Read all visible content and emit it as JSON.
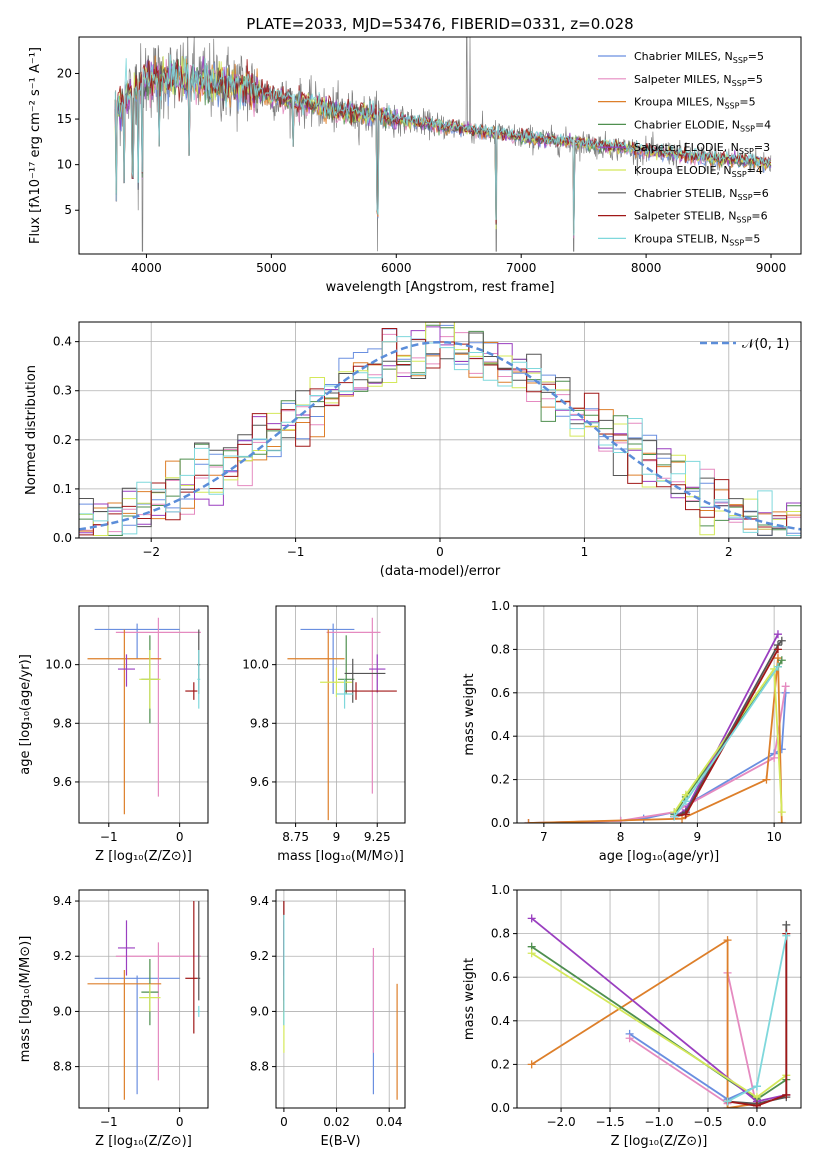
{
  "figure": {
    "title": "PLATE=2033, MJD=53476, FIBERID=0331, z=0.028"
  },
  "colors": {
    "Chabrier MILES": "#6a8fe0",
    "Salpeter MILES": "#e58ac0",
    "Kroupa MILES": "#dd7f2a",
    "Chabrier ELODIE": "#4f8f4f",
    "Salpeter ELODIE": "#9a3fc0",
    "Kroupa ELODIE": "#d4e85a",
    "Chabrier STELIB": "#555555",
    "Salpeter STELIB": "#a01818",
    "Kroupa STELIB": "#7fd8dc",
    "data": "#808080",
    "gauss": "#5b8dd9"
  },
  "chart_data": [
    {
      "id": "spectrum",
      "type": "line",
      "title": "PLATE=2033, MJD=53476, FIBERID=0331, z=0.028",
      "xlabel": "wavelength [Angstrom, rest frame]",
      "ylabel": "Flux [fλ10⁻¹⁷ erg cm⁻² s⁻¹ A⁻¹]",
      "xlim": [
        3460,
        9240
      ],
      "ylim": [
        0.2,
        24
      ],
      "xticks": [
        4000,
        5000,
        6000,
        7000,
        8000,
        9000
      ],
      "yticks": [
        5,
        10,
        15,
        20
      ],
      "legend": "top-right",
      "legend_entries": [
        {
          "name": "Chabrier MILES",
          "sub": "SSP",
          "n": "5"
        },
        {
          "name": "Salpeter MILES",
          "sub": "SSP",
          "n": "5"
        },
        {
          "name": "Kroupa MILES",
          "sub": "SSP",
          "n": "5"
        },
        {
          "name": "Chabrier ELODIE",
          "sub": "SSP",
          "n": "4"
        },
        {
          "name": "Salpeter ELODIE",
          "sub": "SSP",
          "n": "3"
        },
        {
          "name": "Kroupa ELODIE",
          "sub": "SSP",
          "n": "4"
        },
        {
          "name": "Chabrier STELIB",
          "sub": "SSP",
          "n": "6"
        },
        {
          "name": "Salpeter STELIB",
          "sub": "SSP",
          "n": "6"
        },
        {
          "name": "Kroupa STELIB",
          "sub": "SSP",
          "n": "5"
        }
      ],
      "continuum": {
        "x": [
          3750,
          4000,
          4300,
          4800,
          5000,
          5500,
          6000,
          6500,
          7000,
          7500,
          8000,
          8500,
          9000
        ],
        "y": [
          16,
          19.5,
          19.5,
          18.5,
          17.5,
          16,
          15,
          14,
          13,
          12.3,
          11.5,
          10.7,
          10.2
        ]
      },
      "absorption_lines": [
        {
          "x": 3760,
          "y": 6
        },
        {
          "x": 3820,
          "y": 8
        },
        {
          "x": 3890,
          "y": 8.5
        },
        {
          "x": 3934,
          "y": 5
        },
        {
          "x": 3968,
          "y": 0.5
        },
        {
          "x": 4102,
          "y": 12
        },
        {
          "x": 4340,
          "y": 11
        },
        {
          "x": 5175,
          "y": 12
        },
        {
          "x": 5850,
          "y": 0.5
        },
        {
          "x": 6800,
          "y": 0.5
        },
        {
          "x": 7420,
          "y": 0.5
        }
      ],
      "emission_lines": [
        {
          "x": 6563,
          "y": 24
        },
        {
          "x": 6590,
          "y": 24
        }
      ]
    },
    {
      "id": "residuals",
      "type": "line",
      "xlabel": "(data-model)/error",
      "ylabel": "Normed distribution",
      "xlim": [
        -2.5,
        2.5
      ],
      "ylim": [
        0,
        0.44
      ],
      "xticks": [
        -2,
        -1,
        0,
        1,
        2
      ],
      "yticks": [
        0.0,
        0.1,
        0.2,
        0.3,
        0.4
      ],
      "legend": "top-right",
      "legend_label": "𝒩(0, 1)",
      "curve": "normal(0,1) pdf"
    },
    {
      "id": "age_vs_Z",
      "type": "scatter",
      "xlabel": "Z [log₁₀(Z/Z⊙)]",
      "ylabel": "age  [log₁₀(age/yr)]",
      "xlim": [
        -1.42,
        0.4
      ],
      "ylim": [
        9.46,
        10.2
      ],
      "xticks": [
        -1,
        0
      ],
      "yticks": [
        9.6,
        9.8,
        10.0
      ],
      "points": [
        {
          "series": "Chabrier MILES",
          "x": -0.6,
          "xerr": [
            0.6,
            0.6
          ],
          "y": 10.12,
          "yerr": [
            0.1,
            0.02
          ]
        },
        {
          "series": "Salpeter MILES",
          "x": -0.3,
          "xerr": [
            0.6,
            0.6
          ],
          "y": 10.11,
          "yerr": [
            0.56,
            0.05
          ]
        },
        {
          "series": "Kroupa MILES",
          "x": -0.78,
          "xerr": [
            0.52,
            0.52
          ],
          "y": 10.02,
          "yerr": [
            0.53,
            0.1
          ]
        },
        {
          "series": "Chabrier ELODIE",
          "x": -0.42,
          "xerr": [
            0.12,
            0.12
          ],
          "y": 9.95,
          "yerr": [
            0.15,
            0.15
          ]
        },
        {
          "series": "Salpeter ELODIE",
          "x": -0.75,
          "xerr": [
            0.12,
            0.12
          ],
          "y": 9.985,
          "yerr": [
            0.06,
            0.05
          ]
        },
        {
          "series": "Kroupa ELODIE",
          "x": -0.42,
          "xerr": [
            0.15,
            0.15
          ],
          "y": 9.95,
          "yerr": [
            0.1,
            0.1
          ]
        },
        {
          "series": "Chabrier STELIB",
          "x": 0.27,
          "xerr": [
            0.02,
            0.02
          ],
          "y": 10.0,
          "yerr": [
            0.1,
            0.12
          ]
        },
        {
          "series": "Salpeter STELIB",
          "x": 0.2,
          "xerr": [
            0.12,
            0.05
          ],
          "y": 9.91,
          "yerr": [
            0.03,
            0.03
          ]
        },
        {
          "series": "Kroupa STELIB",
          "x": 0.27,
          "xerr": [
            0.02,
            0.02
          ],
          "y": 9.95,
          "yerr": [
            0.1,
            0.1
          ]
        }
      ]
    },
    {
      "id": "age_vs_mass",
      "type": "scatter",
      "xlabel": "mass [log₁₀(M/M⊙)]",
      "ylabel": "",
      "xlim": [
        8.63,
        9.42
      ],
      "ylim": [
        9.46,
        10.2
      ],
      "xticks": [
        8.75,
        9.0,
        9.25
      ],
      "yticks": [
        9.6,
        9.8,
        10.0
      ],
      "points": [
        {
          "series": "Chabrier MILES",
          "x": 8.98,
          "xerr": [
            0.2,
            0.13
          ],
          "y": 10.12,
          "yerr": [
            0.22,
            0.02
          ]
        },
        {
          "series": "Salpeter MILES",
          "x": 9.22,
          "xerr": [
            0.28,
            0.05
          ],
          "y": 10.11,
          "yerr": [
            0.55,
            0.05
          ]
        },
        {
          "series": "Kroupa MILES",
          "x": 8.95,
          "xerr": [
            0.25,
            0.1
          ],
          "y": 10.02,
          "yerr": [
            0.55,
            0.1
          ]
        },
        {
          "series": "Chabrier ELODIE",
          "x": 9.06,
          "xerr": [
            0.05,
            0.05
          ],
          "y": 9.95,
          "yerr": [
            0.05,
            0.15
          ]
        },
        {
          "series": "Salpeter ELODIE",
          "x": 9.25,
          "xerr": [
            0.05,
            0.05
          ],
          "y": 9.985,
          "yerr": [
            0.08,
            0.05
          ]
        },
        {
          "series": "Kroupa ELODIE",
          "x": 9.0,
          "xerr": [
            0.1,
            0.1
          ],
          "y": 9.94,
          "yerr": [
            0.05,
            0.05
          ]
        },
        {
          "series": "Chabrier STELIB",
          "x": 9.1,
          "xerr": [
            0.05,
            0.2
          ],
          "y": 9.97,
          "yerr": [
            0.1,
            0.05
          ]
        },
        {
          "series": "Salpeter STELIB",
          "x": 9.12,
          "xerr": [
            0.07,
            0.25
          ],
          "y": 9.91,
          "yerr": [
            0.03,
            0.03
          ]
        },
        {
          "series": "Kroupa STELIB",
          "x": 9.05,
          "xerr": [
            0.05,
            0.05
          ],
          "y": 9.9,
          "yerr": [
            0.05,
            0.05
          ]
        }
      ]
    },
    {
      "id": "mass_weight_vs_age",
      "type": "line",
      "xlabel": "age  [log₁₀(age/yr)]",
      "ylabel": "mass weight",
      "xlim": [
        6.65,
        10.35
      ],
      "ylim": [
        0,
        1.0
      ],
      "xticks": [
        7,
        8,
        9,
        10
      ],
      "yticks": [
        0.0,
        0.2,
        0.4,
        0.6,
        0.8,
        1.0
      ],
      "series": [
        {
          "name": "Chabrier MILES",
          "x": [
            6.8,
            8.0,
            8.3,
            8.7,
            10.0,
            10.1,
            10.15
          ],
          "y": [
            0.0,
            0.01,
            0.02,
            0.05,
            0.32,
            0.34,
            0.6
          ]
        },
        {
          "name": "Salpeter MILES",
          "x": [
            6.8,
            8.0,
            8.7,
            10.0,
            10.15
          ],
          "y": [
            0.0,
            0.01,
            0.05,
            0.3,
            0.63
          ]
        },
        {
          "name": "Kroupa MILES",
          "x": [
            6.8,
            8.8,
            9.9,
            10.05,
            10.1
          ],
          "y": [
            0.0,
            0.02,
            0.2,
            0.76,
            0.0
          ]
        },
        {
          "name": "Chabrier ELODIE",
          "x": [
            8.7,
            8.85,
            10.05,
            10.1
          ],
          "y": [
            0.04,
            0.12,
            0.72,
            0.75
          ]
        },
        {
          "name": "Salpeter ELODIE",
          "x": [
            8.7,
            8.85,
            10.05
          ],
          "y": [
            0.03,
            0.06,
            0.87
          ]
        },
        {
          "name": "Kroupa ELODIE",
          "x": [
            8.7,
            8.85,
            10.0,
            10.1
          ],
          "y": [
            0.05,
            0.13,
            0.71,
            0.05
          ]
        },
        {
          "name": "Chabrier STELIB",
          "x": [
            8.7,
            8.85,
            10.05,
            10.1
          ],
          "y": [
            0.03,
            0.05,
            0.82,
            0.84
          ]
        },
        {
          "name": "Salpeter STELIB",
          "x": [
            8.7,
            8.85,
            10.05
          ],
          "y": [
            0.03,
            0.04,
            0.8
          ]
        },
        {
          "name": "Kroupa STELIB",
          "x": [
            8.7,
            8.85,
            10.05
          ],
          "y": [
            0.03,
            0.1,
            0.72
          ]
        }
      ]
    },
    {
      "id": "mass_vs_Z",
      "type": "scatter",
      "xlabel": "Z [log₁₀(Z/Z⊙)]",
      "ylabel": "mass [log₁₀(M/M⊙)]",
      "xlim": [
        -1.42,
        0.4
      ],
      "ylim": [
        8.65,
        9.44
      ],
      "xticks": [
        -1,
        0
      ],
      "yticks": [
        8.8,
        9.0,
        9.2,
        9.4
      ],
      "points": [
        {
          "series": "Chabrier MILES",
          "x": -0.6,
          "xerr": [
            0.6,
            0.6
          ],
          "y": 9.12,
          "yerr": [
            0.42,
            0.01
          ]
        },
        {
          "series": "Salpeter MILES",
          "x": -0.3,
          "xerr": [
            0.6,
            0.6
          ],
          "y": 9.2,
          "yerr": [
            0.45,
            0.05
          ]
        },
        {
          "series": "Kroupa MILES",
          "x": -0.78,
          "xerr": [
            0.52,
            0.52
          ],
          "y": 9.1,
          "yerr": [
            0.42,
            0.05
          ]
        },
        {
          "series": "Chabrier ELODIE",
          "x": -0.42,
          "xerr": [
            0.12,
            0.12
          ],
          "y": 9.07,
          "yerr": [
            0.12,
            0.12
          ]
        },
        {
          "series": "Salpeter ELODIE",
          "x": -0.75,
          "xerr": [
            0.12,
            0.12
          ],
          "y": 9.23,
          "yerr": [
            0.1,
            0.1
          ]
        },
        {
          "series": "Kroupa ELODIE",
          "x": -0.42,
          "xerr": [
            0.15,
            0.15
          ],
          "y": 9.05,
          "yerr": [
            0.05,
            0.05
          ]
        },
        {
          "series": "Chabrier STELIB",
          "x": 0.27,
          "xerr": [
            0.02,
            0.02
          ],
          "y": 9.12,
          "yerr": [
            0.08,
            0.28
          ]
        },
        {
          "series": "Salpeter STELIB",
          "x": 0.2,
          "xerr": [
            0.12,
            0.05
          ],
          "y": 9.12,
          "yerr": [
            0.2,
            0.28
          ]
        },
        {
          "series": "Kroupa STELIB",
          "x": 0.27,
          "xerr": [
            0.02,
            0.02
          ],
          "y": 9.0,
          "yerr": [
            0.02,
            0.02
          ]
        }
      ]
    },
    {
      "id": "mass_vs_EBV",
      "type": "scatter",
      "xlabel": "E(B-V)",
      "ylabel": "",
      "xlim": [
        -0.003,
        0.046
      ],
      "ylim": [
        8.65,
        9.44
      ],
      "xticks": [
        0.0,
        0.02,
        0.04
      ],
      "yticks": [
        8.8,
        9.0,
        9.2,
        9.4
      ],
      "points": [
        {
          "series": "Chabrier MILES",
          "x": 0.034,
          "xerr": [
            0,
            0
          ],
          "y": 9.0,
          "yerr": [
            0.3,
            0.2
          ]
        },
        {
          "series": "Salpeter MILES",
          "x": 0.034,
          "xerr": [
            0,
            0
          ],
          "y": 9.05,
          "yerr": [
            0.2,
            0.18
          ]
        },
        {
          "series": "Kroupa MILES",
          "x": 0.043,
          "xerr": [
            0,
            0
          ],
          "y": 8.9,
          "yerr": [
            0.22,
            0.2
          ]
        },
        {
          "series": "Chabrier ELODIE",
          "x": 0.0,
          "xerr": [
            0,
            0
          ],
          "y": 9.07,
          "yerr": [
            0.12,
            0.12
          ]
        },
        {
          "series": "Salpeter ELODIE",
          "x": 0.0,
          "xerr": [
            0,
            0
          ],
          "y": 9.23,
          "yerr": [
            0.1,
            0.1
          ]
        },
        {
          "series": "Kroupa ELODIE",
          "x": 0.0,
          "xerr": [
            0,
            0
          ],
          "y": 8.95,
          "yerr": [
            0.1,
            0.1
          ]
        },
        {
          "series": "Chabrier STELIB",
          "x": 0.0,
          "xerr": [
            0,
            0
          ],
          "y": 9.12,
          "yerr": [
            0.08,
            0.28
          ]
        },
        {
          "series": "Salpeter STELIB",
          "x": 0.0,
          "xerr": [
            0,
            0
          ],
          "y": 9.2,
          "yerr": [
            0.2,
            0.2
          ]
        },
        {
          "series": "Kroupa STELIB",
          "x": 0.0,
          "xerr": [
            0,
            0
          ],
          "y": 9.15,
          "yerr": [
            0.2,
            0.2
          ]
        }
      ]
    },
    {
      "id": "mass_weight_vs_Z",
      "type": "line",
      "xlabel": "Z [log₁₀(Z/Z⊙)]",
      "ylabel": "mass weight",
      "xlim": [
        -2.45,
        0.45
      ],
      "ylim": [
        0,
        1.0
      ],
      "xticks": [
        -2.0,
        -1.5,
        -1.0,
        -0.5,
        0.0
      ],
      "yticks": [
        0.0,
        0.2,
        0.4,
        0.6,
        0.8,
        1.0
      ],
      "series": [
        {
          "name": "Chabrier MILES",
          "x": [
            -1.3,
            -0.3,
            0.0
          ],
          "y": [
            0.34,
            0.04,
            0.1
          ]
        },
        {
          "name": "Salpeter MILES",
          "x": [
            -1.3,
            -0.3,
            -0.3,
            0.0
          ],
          "y": [
            0.32,
            0.02,
            0.62,
            0.0
          ]
        },
        {
          "name": "Kroupa MILES",
          "x": [
            -2.3,
            -0.3,
            -0.3,
            0.0
          ],
          "y": [
            0.2,
            0.77,
            0.0,
            0.02
          ]
        },
        {
          "name": "Chabrier ELODIE",
          "x": [
            -2.3,
            0.0,
            0.3
          ],
          "y": [
            0.74,
            0.04,
            0.13
          ]
        },
        {
          "name": "Salpeter ELODIE",
          "x": [
            -2.3,
            0.0,
            0.3
          ],
          "y": [
            0.87,
            0.03,
            0.06
          ]
        },
        {
          "name": "Kroupa ELODIE",
          "x": [
            -2.3,
            0.0,
            0.3
          ],
          "y": [
            0.71,
            0.05,
            0.15
          ]
        },
        {
          "name": "Chabrier STELIB",
          "x": [
            -0.3,
            0.0,
            0.3,
            0.3
          ],
          "y": [
            0.03,
            0.02,
            0.05,
            0.84
          ]
        },
        {
          "name": "Salpeter STELIB",
          "x": [
            -0.3,
            0.0,
            0.3,
            0.3
          ],
          "y": [
            0.03,
            0.01,
            0.06,
            0.8
          ]
        },
        {
          "name": "Kroupa STELIB",
          "x": [
            -0.3,
            0.0,
            0.3
          ],
          "y": [
            0.03,
            0.1,
            0.79
          ]
        }
      ]
    }
  ]
}
